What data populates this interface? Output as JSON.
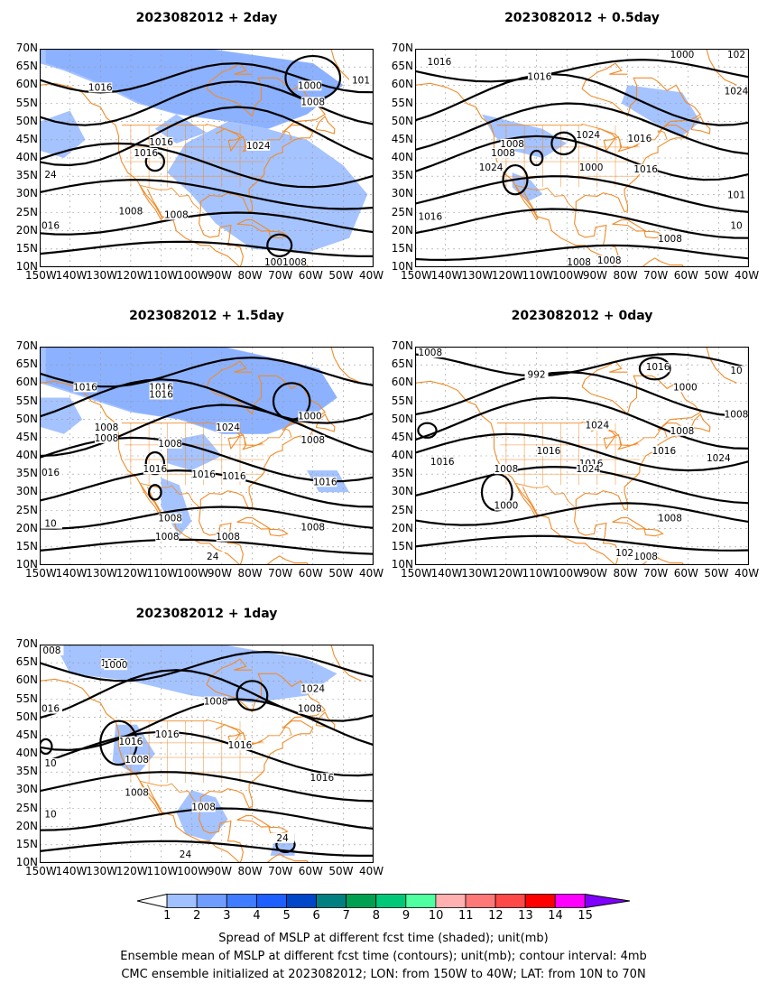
{
  "panels": [
    {
      "title": "2023082012  +  2day"
    },
    {
      "title": "2023082012  +  0.5day"
    },
    {
      "title": "2023082012  +  1.5day"
    },
    {
      "title": "2023082012  +  0day"
    },
    {
      "title": "2023082012  +  1day"
    }
  ],
  "axes": {
    "lat_labels": [
      "70N",
      "65N",
      "60N",
      "55N",
      "50N",
      "45N",
      "40N",
      "35N",
      "30N",
      "25N",
      "20N",
      "15N",
      "10N"
    ],
    "lon_labels": [
      "150W",
      "140W",
      "130W",
      "120W",
      "110W",
      "100W",
      "90W",
      "80W",
      "70W",
      "60W",
      "50W",
      "40W"
    ]
  },
  "contour_labels": {
    "p0": [
      "1016",
      "1016",
      "1000",
      "1008",
      "1024",
      "1016",
      "1008",
      "1008",
      "1008",
      "1008",
      "24",
      "016",
      "101"
    ],
    "p1": [
      "1016",
      "1000",
      "1016",
      "1008",
      "1008",
      "1024",
      "1016",
      "1000",
      "1016",
      "1024",
      "1016",
      "1008",
      "1008",
      "1008",
      "102",
      "1024",
      "101",
      "10"
    ],
    "p2": [
      "1016",
      "1016",
      "1016",
      "1000",
      "1008",
      "1008",
      "1008",
      "1024",
      "1008",
      "1016",
      "1016",
      "1016",
      "1016",
      "1008",
      "1008",
      "1008",
      "1008",
      "24",
      "016",
      "10"
    ],
    "p3": [
      "1008",
      "992",
      "1016",
      "1000",
      "1024",
      "1008",
      "1016",
      "1016",
      "1016",
      "1008",
      "1000",
      "1024",
      "1024",
      "1016",
      "1008",
      "1008",
      "1008",
      "102",
      "10"
    ],
    "p4": [
      "008",
      "1016",
      "1000",
      "1024",
      "1008",
      "1008",
      "1016",
      "1008",
      "1016",
      "1016",
      "1016",
      "1008",
      "1008",
      "24",
      "24",
      "016",
      "10",
      "10"
    ]
  },
  "colorbar": {
    "ticks": [
      "1",
      "2",
      "3",
      "4",
      "5",
      "6",
      "7",
      "8",
      "9",
      "10",
      "11",
      "12",
      "13",
      "14",
      "15"
    ],
    "colors": [
      "#ffffff",
      "#a0c0ff",
      "#6f9cff",
      "#3f7cff",
      "#1f5fff",
      "#0046c8",
      "#008080",
      "#00a050",
      "#00c878",
      "#50ffa0",
      "#ffb0b0",
      "#ff7878",
      "#ff4848",
      "#ff0000",
      "#ff00ff",
      "#8000ff"
    ]
  },
  "caption": {
    "line1": "Spread of MSLP at different fcst time (shaded); unit(mb)",
    "line2": "Ensemble mean of MSLP at different fcst time (contours); unit(mb); contour interval: 4mb",
    "line3": "CMC ensemble initialized at 2023082012; LON: from 150W to 40W; LAT: from 10N to 70N"
  }
}
